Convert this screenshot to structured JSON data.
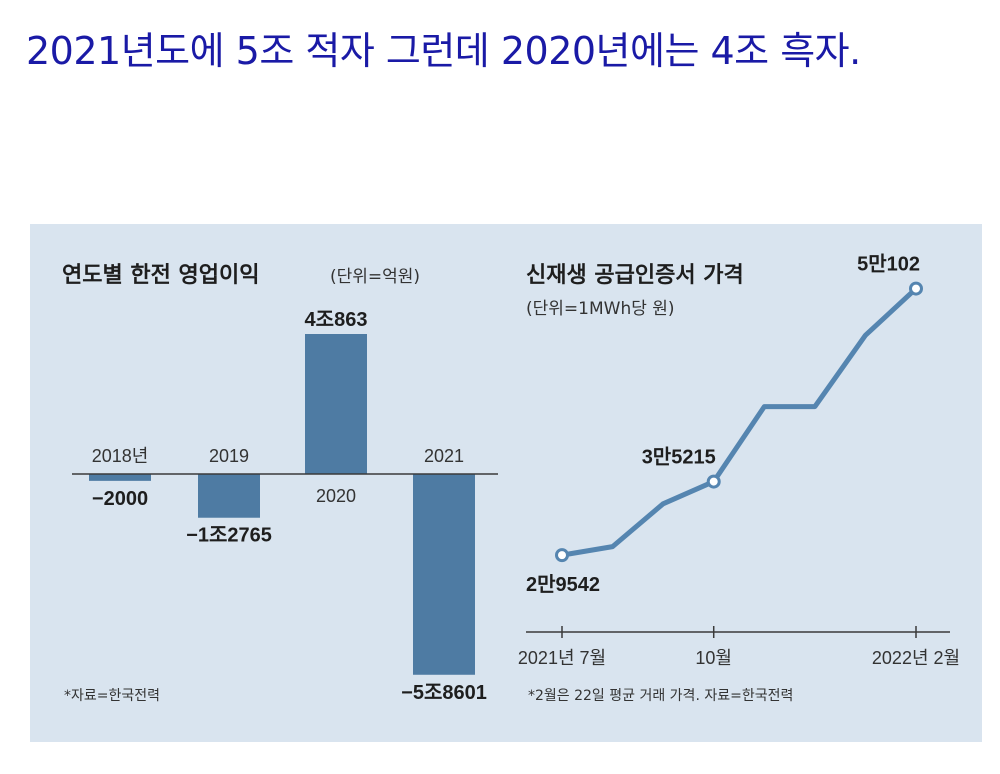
{
  "headline": "2021년도에 5조 적자 그런데 2020년에는 4조 흑자.",
  "colors": {
    "headline": "#1a1aa6",
    "panel_background": "#d9e4ef",
    "bar": "#4e7ba3",
    "line": "#5585b0",
    "axis": "#3a3a3a"
  },
  "chart_data": [
    {
      "type": "bar",
      "title": "연도별 한전 영업이익",
      "unit_label": "(단위=억원)",
      "categories": [
        "2018년",
        "2019",
        "2020",
        "2021"
      ],
      "values": [
        -2000,
        -12765,
        40863,
        -58601
      ],
      "value_labels": [
        "−2000",
        "−1조2765",
        "4조863",
        "−5조8601"
      ],
      "source": "*자료=한국전력"
    },
    {
      "type": "line",
      "title": "신재생 공급인증서 가격",
      "unit_label": "(단위=1MWh당 원)",
      "x": [
        "2021-07",
        "2021-08",
        "2021-09",
        "2021-10",
        "2021-11",
        "2021-12",
        "2022-01",
        "2022-02"
      ],
      "values": [
        29542,
        30200,
        33500,
        35215,
        41000,
        41000,
        46500,
        50102
      ],
      "x_tick_labels": [
        "2021년 7월",
        "10월",
        "2022년 2월"
      ],
      "x_tick_positions": [
        0,
        3,
        7
      ],
      "annotated_points": [
        {
          "index": 0,
          "label": "2만9542"
        },
        {
          "index": 3,
          "label": "3만5215"
        },
        {
          "index": 7,
          "label": "5만102"
        }
      ],
      "ylim": [
        25000,
        52000
      ],
      "source": "*2월은 22일 평균 거래 가격. 자료=한국전력"
    }
  ]
}
